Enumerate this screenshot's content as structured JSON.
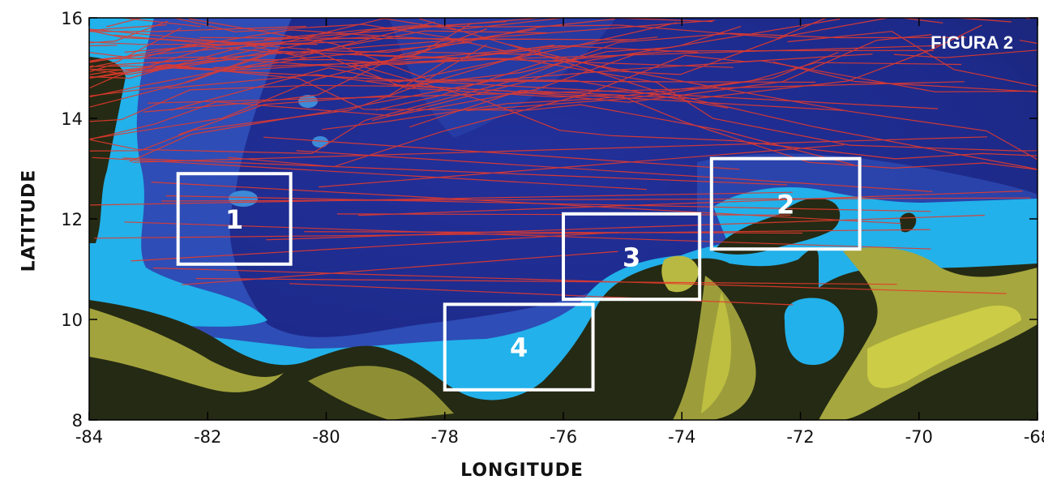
{
  "figure_label": "FIGURA 2",
  "map": {
    "xlabel": "LONGITUDE",
    "ylabel": "LATITUDE",
    "lon_range": [
      -84,
      -68
    ],
    "lat_range": [
      8,
      16
    ],
    "x_ticks": [
      "-84",
      "-82",
      "-80",
      "-78",
      "-76",
      "-74",
      "-72",
      "-70",
      "-68"
    ],
    "y_ticks": [
      "8",
      "10",
      "12",
      "14",
      "16"
    ],
    "colors": {
      "deep_sea": "#1e2c90",
      "mid_sea": "#3455c0",
      "shelf": "#20aee8",
      "land": "#252a14",
      "highland": "#a2a33c",
      "track": "#e53a2c",
      "box": "#ffffff"
    },
    "regions": [
      {
        "label": "1",
        "lon": [
          -82.5,
          -80.6
        ],
        "lat": [
          11.1,
          12.9
        ]
      },
      {
        "label": "2",
        "lon": [
          -73.5,
          -71.0
        ],
        "lat": [
          11.4,
          13.2
        ]
      },
      {
        "label": "3",
        "lon": [
          -76.0,
          -73.7
        ],
        "lat": [
          10.4,
          12.1
        ]
      },
      {
        "label": "4",
        "lon": [
          -78.0,
          -75.5
        ],
        "lat": [
          8.6,
          10.3
        ]
      }
    ]
  }
}
